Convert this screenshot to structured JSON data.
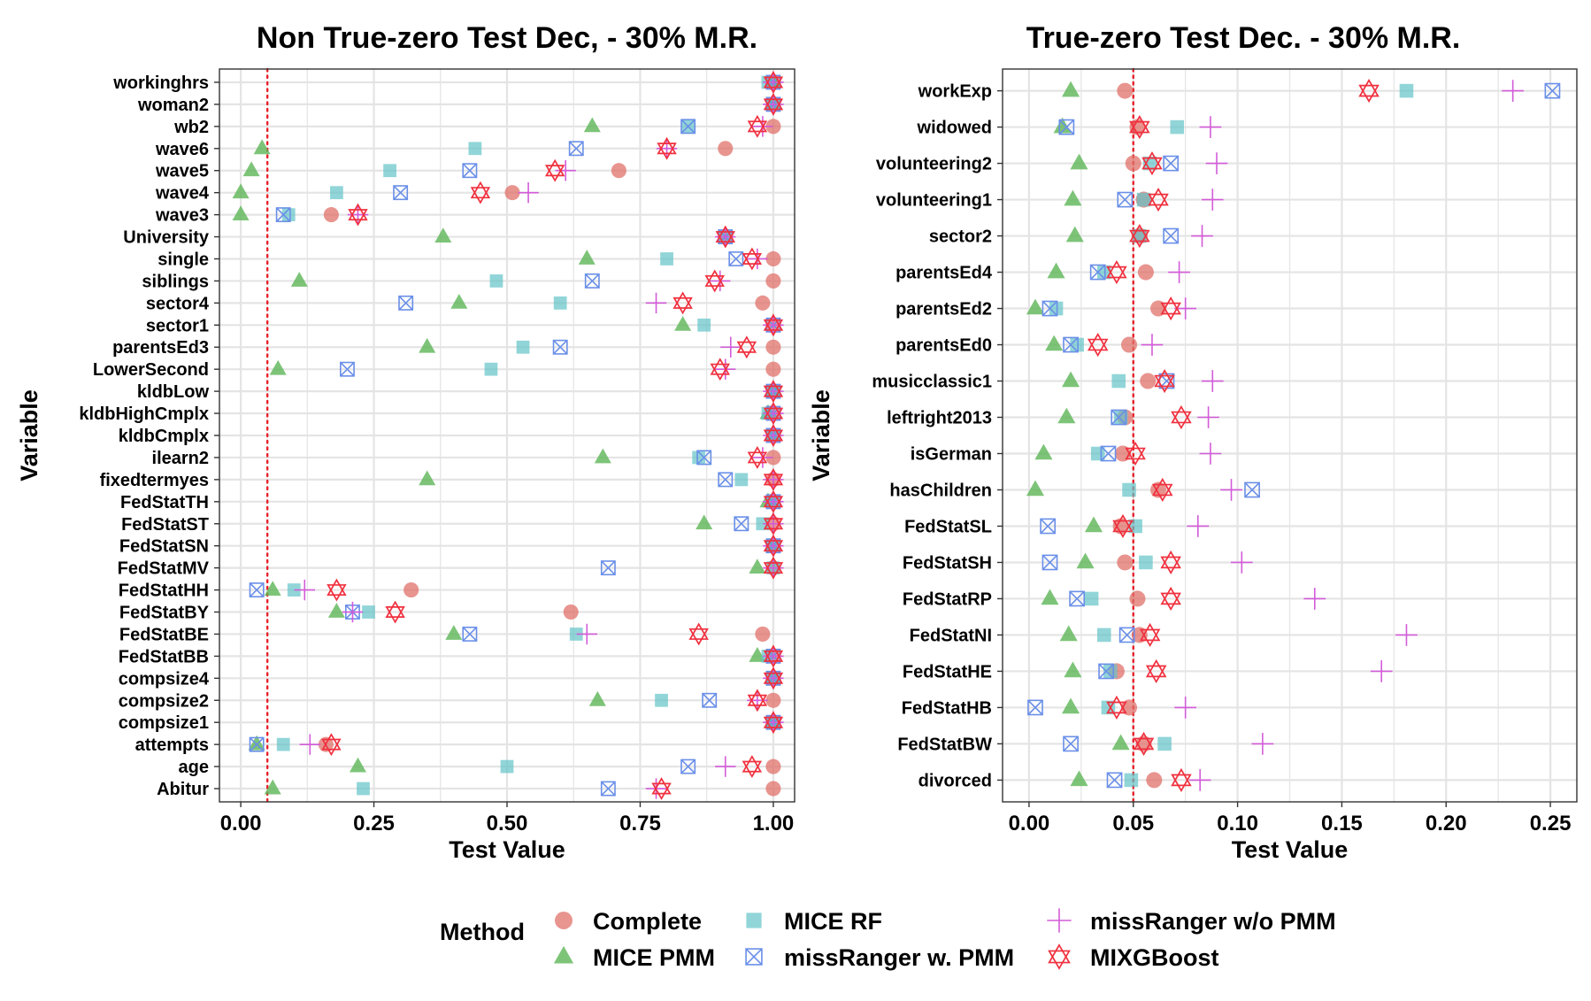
{
  "chart_data": [
    {
      "type": "scatter",
      "title": "Non True-zero Test Dec, - 30% M.R.",
      "xlabel": "Test Value",
      "ylabel": "Variable",
      "xlim": [
        -0.04,
        1.04
      ],
      "xticks": [
        0.0,
        0.25,
        0.5,
        0.75,
        1.0
      ],
      "xtick_labels": [
        "0.00",
        "0.25",
        "0.50",
        "0.75",
        "1.00"
      ],
      "reference_line": 0.05,
      "grid": true,
      "categories": [
        "workinghrs",
        "woman2",
        "wb2",
        "wave6",
        "wave5",
        "wave4",
        "wave3",
        "University",
        "single",
        "siblings",
        "sector4",
        "sector1",
        "parentsEd3",
        "LowerSecond",
        "kldbLow",
        "kldbHighCmplx",
        "kldbCmplx",
        "ilearn2",
        "fixedtermyes",
        "FedStatTH",
        "FedStatST",
        "FedStatSN",
        "FedStatMV",
        "FedStatHH",
        "FedStatBY",
        "FedStatBE",
        "FedStatBB",
        "compsize4",
        "compsize2",
        "compsize1",
        "attempts",
        "age",
        "Abitur"
      ],
      "series": [
        {
          "name": "Complete",
          "values": [
            1.0,
            1.0,
            1.0,
            0.91,
            0.71,
            0.51,
            0.17,
            0.91,
            1.0,
            1.0,
            0.98,
            1.0,
            1.0,
            1.0,
            1.0,
            1.0,
            1.0,
            1.0,
            1.0,
            1.0,
            1.0,
            1.0,
            1.0,
            0.32,
            0.62,
            0.98,
            1.0,
            1.0,
            1.0,
            1.0,
            0.16,
            1.0,
            1.0
          ]
        },
        {
          "name": "MICE PMM",
          "values": [
            1.0,
            1.0,
            0.66,
            0.04,
            0.02,
            0.0,
            0.0,
            0.38,
            0.65,
            0.11,
            0.41,
            0.83,
            0.35,
            0.07,
            1.0,
            0.99,
            1.0,
            0.68,
            0.35,
            0.99,
            0.87,
            1.0,
            0.97,
            0.06,
            0.18,
            0.4,
            0.97,
            1.0,
            0.67,
            1.0,
            0.03,
            0.22,
            0.06
          ]
        },
        {
          "name": "MICE RF",
          "values": [
            0.99,
            1.0,
            0.84,
            0.44,
            0.28,
            0.18,
            0.09,
            0.91,
            0.8,
            0.48,
            0.6,
            0.87,
            0.53,
            0.47,
            1.0,
            0.99,
            1.0,
            0.86,
            0.94,
            1.0,
            0.98,
            1.0,
            1.0,
            0.1,
            0.24,
            0.63,
            0.99,
            1.0,
            0.79,
            1.0,
            0.08,
            0.5,
            0.23
          ]
        },
        {
          "name": "missRanger w. PMM",
          "values": [
            1.0,
            1.0,
            0.84,
            0.63,
            0.43,
            0.3,
            0.08,
            0.91,
            0.93,
            0.66,
            0.31,
            1.0,
            0.6,
            0.2,
            1.0,
            1.0,
            1.0,
            0.87,
            0.91,
            1.0,
            0.94,
            1.0,
            0.69,
            0.03,
            0.21,
            0.43,
            1.0,
            1.0,
            0.88,
            1.0,
            0.03,
            0.84,
            0.69
          ]
        },
        {
          "name": "missRanger w/o PMM",
          "values": [
            1.0,
            1.0,
            0.98,
            0.8,
            0.61,
            0.54,
            0.22,
            0.91,
            0.97,
            0.9,
            0.78,
            1.0,
            0.92,
            0.91,
            1.0,
            1.0,
            1.0,
            0.98,
            1.0,
            1.0,
            1.0,
            1.0,
            1.0,
            0.12,
            0.21,
            0.65,
            1.0,
            1.0,
            0.97,
            1.0,
            0.13,
            0.91,
            0.78
          ]
        },
        {
          "name": "MIXGBoost",
          "values": [
            1.0,
            1.0,
            0.97,
            0.8,
            0.59,
            0.45,
            0.22,
            0.91,
            0.96,
            0.89,
            0.83,
            1.0,
            0.95,
            0.9,
            1.0,
            1.0,
            1.0,
            0.97,
            1.0,
            1.0,
            1.0,
            1.0,
            1.0,
            0.18,
            0.29,
            0.86,
            1.0,
            1.0,
            0.97,
            1.0,
            0.17,
            0.96,
            0.79
          ]
        }
      ]
    },
    {
      "type": "scatter",
      "title": "True-zero Test Dec. - 30% M.R.",
      "xlabel": "Test Value",
      "ylabel": "Variable",
      "xlim": [
        -0.0127,
        0.2627
      ],
      "xticks": [
        0.0,
        0.05,
        0.1,
        0.15,
        0.2,
        0.25
      ],
      "xtick_labels": [
        "0.00",
        "0.05",
        "0.10",
        "0.15",
        "0.20",
        "0.25"
      ],
      "reference_line": 0.05,
      "grid": true,
      "categories": [
        "workExp",
        "widowed",
        "volunteering2",
        "volunteering1",
        "sector2",
        "parentsEd4",
        "parentsEd2",
        "parentsEd0",
        "musicclassic1",
        "leftright2013",
        "isGerman",
        "hasChildren",
        "FedStatSL",
        "FedStatSH",
        "FedStatRP",
        "FedStatNI",
        "FedStatHE",
        "FedStatHB",
        "FedStatBW",
        "divorced"
      ],
      "series": [
        {
          "name": "Complete",
          "values": [
            0.046,
            0.052,
            0.05,
            0.055,
            0.053,
            0.056,
            0.062,
            0.048,
            0.057,
            0.046,
            0.045,
            0.062,
            0.044,
            0.046,
            0.052,
            0.053,
            0.042,
            0.048,
            0.055,
            0.06
          ]
        },
        {
          "name": "MICE PMM",
          "values": [
            0.02,
            0.016,
            0.024,
            0.021,
            0.022,
            0.013,
            0.003,
            0.012,
            0.02,
            0.018,
            0.007,
            0.003,
            0.031,
            0.027,
            0.01,
            0.019,
            0.021,
            0.02,
            0.044,
            0.024
          ]
        },
        {
          "name": "MICE RF",
          "values": [
            0.181,
            0.071,
            0.058,
            0.055,
            0.053,
            0.036,
            0.013,
            0.023,
            0.043,
            0.044,
            0.033,
            0.048,
            0.051,
            0.056,
            0.03,
            0.036,
            0.039,
            0.038,
            0.065,
            0.049
          ]
        },
        {
          "name": "missRanger w. PMM",
          "values": [
            0.251,
            0.018,
            0.068,
            0.046,
            0.068,
            0.033,
            0.01,
            0.02,
            0.066,
            0.043,
            0.038,
            0.107,
            0.009,
            0.01,
            0.023,
            0.047,
            0.037,
            0.003,
            0.02,
            0.041
          ]
        },
        {
          "name": "missRanger w/o PMM",
          "values": [
            0.232,
            0.087,
            0.09,
            0.088,
            0.083,
            0.072,
            0.075,
            0.059,
            0.088,
            0.086,
            0.087,
            0.097,
            0.081,
            0.102,
            0.137,
            0.181,
            0.169,
            0.075,
            0.112,
            0.082
          ]
        },
        {
          "name": "MIXGBoost",
          "values": [
            0.163,
            0.053,
            0.059,
            0.062,
            0.053,
            0.042,
            0.068,
            0.033,
            0.065,
            0.073,
            0.051,
            0.064,
            0.045,
            0.068,
            0.068,
            0.058,
            0.061,
            0.042,
            0.055,
            0.073
          ]
        }
      ]
    }
  ],
  "legend": {
    "title": "Method",
    "position": "bottom",
    "items": [
      {
        "label": "Complete",
        "shape": "circle",
        "color": "#E0706A"
      },
      {
        "label": "MICE PMM",
        "shape": "triangle",
        "color": "#5DB556"
      },
      {
        "label": "MICE RF",
        "shape": "square",
        "color": "#63C3C8"
      },
      {
        "label": "missRanger w. PMM",
        "shape": "square-cross",
        "color": "#6A8FE8"
      },
      {
        "label": "missRanger w/o PMM",
        "shape": "plus",
        "color": "#D35BD9"
      },
      {
        "label": "MIXGBoost",
        "shape": "star-of-david",
        "color": "#F0303E"
      }
    ]
  },
  "colors": {
    "reference_line": "#E8202A",
    "grid": "#E4E4E4",
    "panel_border": "#333333"
  }
}
